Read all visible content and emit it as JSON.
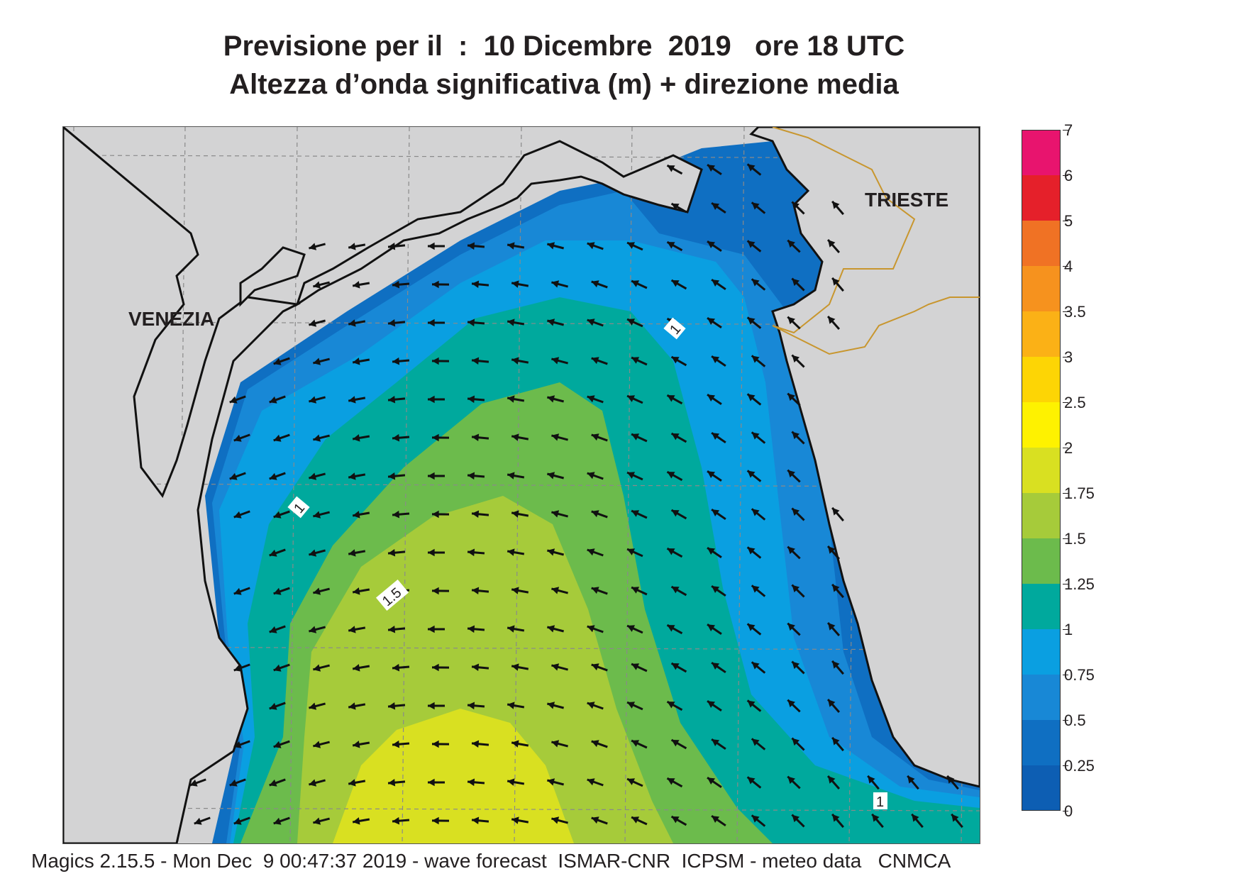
{
  "title": {
    "line1": "Previsione per il  :  10 Dicembre  2019   ore 18 UTC",
    "line2": "Altezza d’onda significativa (m) + direzione media"
  },
  "legend": {
    "labels": [
      "7",
      "6",
      "5",
      "4",
      "3.5",
      "3",
      "2.5",
      "2",
      "1.75",
      "1.5",
      "1.25",
      "1",
      "0.75",
      "0.5",
      "0.25",
      "0"
    ],
    "colors": [
      "#e8146e",
      "#e5202a",
      "#f07224",
      "#f6921e",
      "#fbb116",
      "#fdd505",
      "#fef200",
      "#d9e021",
      "#a6cb3a",
      "#6cbb4c",
      "#00a99d",
      "#0a9fe1",
      "#1888d6",
      "#0f6fc2",
      "#0d5eb3"
    ]
  },
  "map": {
    "cities": {
      "venezia": "VENEZIA",
      "trieste": "TRIESTE"
    },
    "contour_labels": {
      "a": "1",
      "b": "1",
      "c": "1.5",
      "d": "1"
    },
    "colors": {
      "land": "#d3d3d4",
      "coast": "#111111",
      "border": "#c8962e",
      "grid": "#8a8a8a",
      "bands": [
        "#0f6fc2",
        "#1888d6",
        "#0a9fe1",
        "#00a99d",
        "#6cbb4c",
        "#a6cb3a",
        "#d9e021"
      ]
    }
  },
  "footer": "Magics 2.15.5 - Mon Dec  9 00:47:37 2019 - wave forecast  ISMAR-CNR  ICPSM - meteo data   CNMCA"
}
